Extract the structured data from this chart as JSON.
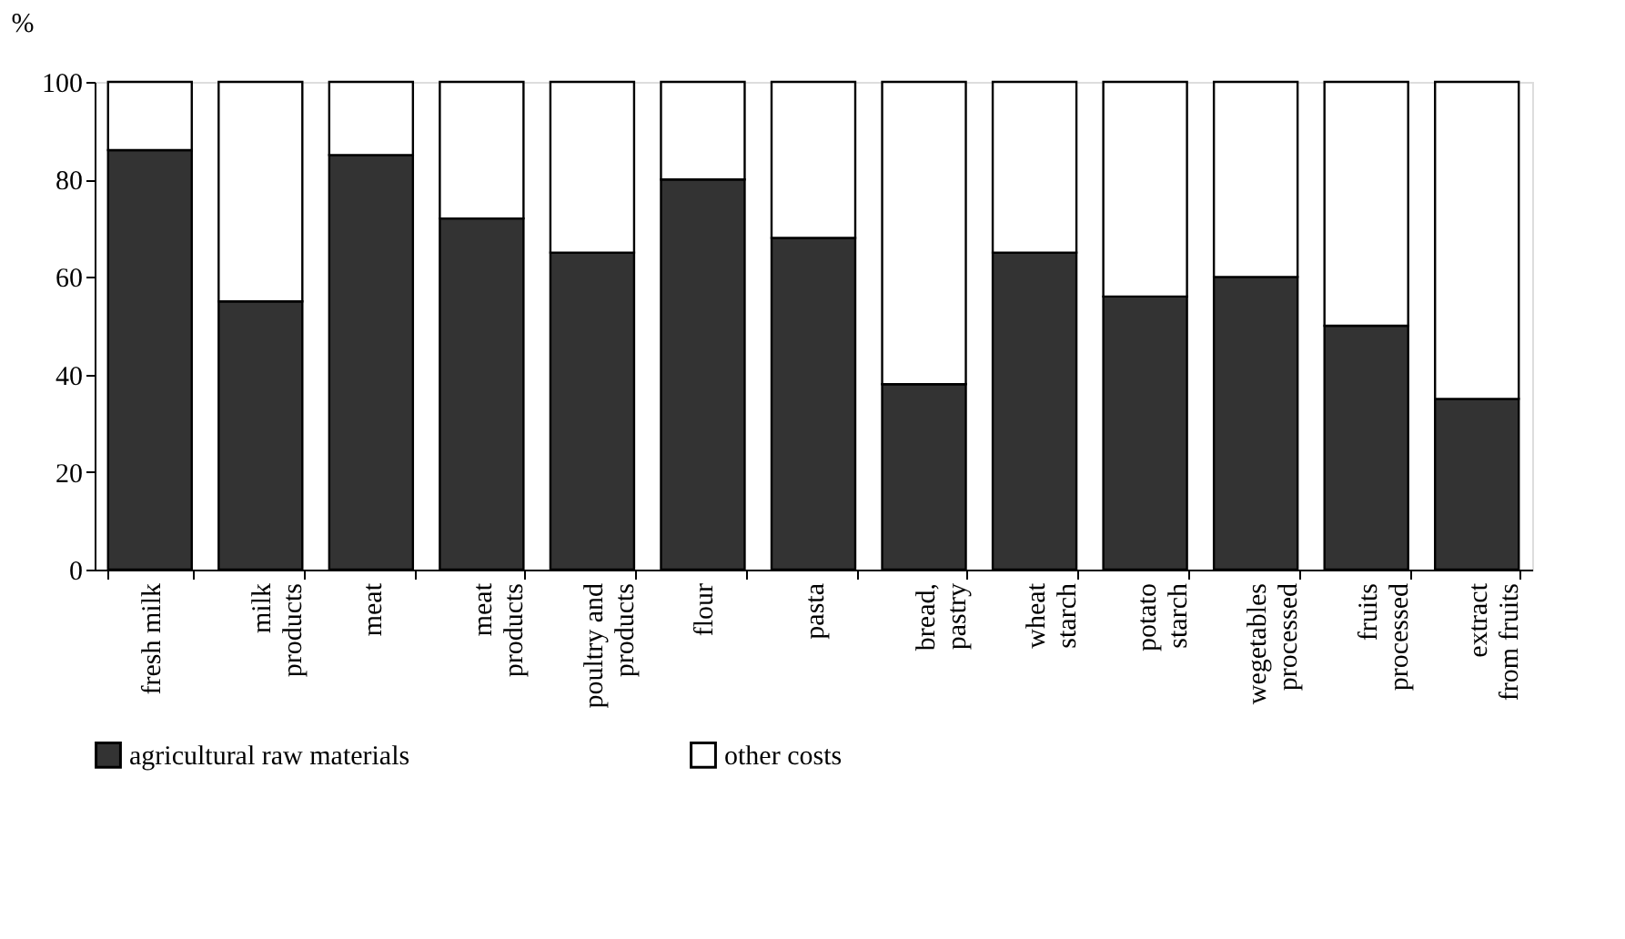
{
  "chart_data": {
    "type": "bar",
    "stacked": true,
    "ylabel": "%",
    "categories": [
      "fresh milk",
      "milk\nproducts",
      "meat",
      "meat\nproducts",
      "poultry and\nproducts",
      "flour",
      "pasta",
      "bread,\npastry",
      "wheat\nstarch",
      "potato\nstarch",
      "wegetables\nprocessed",
      "fruits\nprocessed",
      "extract\nfrom fruits"
    ],
    "series": [
      {
        "name": "agricultural raw materials",
        "color": "#333333",
        "values": [
          86,
          55,
          85,
          72,
          65,
          80,
          68,
          38,
          65,
          56,
          60,
          50,
          35
        ]
      },
      {
        "name": "other costs",
        "color": "#ffffff",
        "values": [
          14,
          45,
          15,
          28,
          35,
          20,
          32,
          62,
          35,
          44,
          40,
          50,
          65
        ]
      }
    ],
    "ylim": [
      0,
      100
    ],
    "yticks": [
      0,
      20,
      40,
      60,
      80,
      100
    ],
    "grid": false,
    "legend": "bottom"
  }
}
